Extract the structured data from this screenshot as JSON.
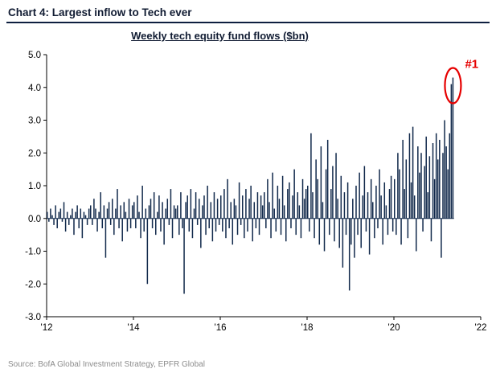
{
  "header": {
    "title": "Chart 4: Largest inflow to Tech ever"
  },
  "source": "Source: BofA Global Investment Strategy, EPFR Global",
  "colors": {
    "bar": "#11294b",
    "axis": "#000000",
    "title": "#111c33",
    "rule": "#0e1f40",
    "accent_red": "#e60000",
    "source_gray": "#8c8c8c"
  },
  "chart_data": {
    "type": "bar",
    "title": "Weekly tech equity fund flows ($bn)",
    "xlabel": "",
    "ylabel": "",
    "ylim": [
      -3.0,
      5.0
    ],
    "xlim": [
      2012,
      2022
    ],
    "y_ticks": [
      5.0,
      4.0,
      3.0,
      2.0,
      1.0,
      0.0,
      -1.0,
      -2.0,
      -3.0
    ],
    "x_ticks": [
      "'12",
      "'14",
      "'16",
      "'18",
      "'20",
      "'22"
    ],
    "x_tick_years": [
      2012,
      2014,
      2016,
      2018,
      2020,
      2022
    ],
    "x_start": 2012,
    "points_per_year": 26,
    "grid": false,
    "legend": "none",
    "annotation": {
      "label": "#1",
      "color": "#e60000",
      "value": 4.3
    },
    "values": [
      0.2,
      -0.1,
      0.3,
      0.1,
      -0.2,
      0.4,
      -0.3,
      0.2,
      0.3,
      -0.1,
      0.5,
      -0.4,
      0.2,
      -0.2,
      0.1,
      0.3,
      -0.5,
      0.2,
      0.4,
      -0.3,
      0.3,
      -0.6,
      0.2,
      0.1,
      -0.2,
      0.3,
      0.4,
      -0.2,
      0.6,
      0.3,
      -0.4,
      0.2,
      0.8,
      -0.3,
      0.4,
      -1.2,
      0.3,
      0.5,
      -0.2,
      0.6,
      -0.5,
      0.3,
      0.9,
      -0.3,
      0.4,
      -0.7,
      0.5,
      0.2,
      -0.4,
      0.6,
      -0.3,
      0.4,
      0.5,
      -0.3,
      0.7,
      0.2,
      -0.6,
      1.0,
      -0.4,
      0.3,
      -2.0,
      0.4,
      0.6,
      -0.3,
      0.8,
      -0.5,
      0.2,
      0.7,
      -0.4,
      0.5,
      -0.8,
      0.3,
      0.6,
      -0.2,
      0.9,
      -0.6,
      0.4,
      0.3,
      0.4,
      -0.5,
      0.8,
      -0.3,
      -2.3,
      0.5,
      0.7,
      -0.4,
      0.9,
      -0.6,
      0.3,
      0.8,
      -0.2,
      0.6,
      -0.9,
      0.4,
      0.7,
      -0.5,
      1.0,
      -0.3,
      0.5,
      -0.7,
      0.8,
      -0.4,
      0.6,
      -0.2,
      0.7,
      -0.4,
      0.9,
      -0.6,
      1.2,
      -0.3,
      0.5,
      -0.8,
      0.6,
      0.4,
      -0.5,
      1.1,
      -0.2,
      0.7,
      -0.6,
      0.9,
      -0.4,
      0.6,
      1.0,
      -0.7,
      0.5,
      -0.3,
      0.8,
      -0.5,
      0.7,
      0.4,
      0.8,
      -0.3,
      1.2,
      0.5,
      -0.6,
      1.4,
      0.3,
      -0.4,
      1.0,
      0.6,
      -0.5,
      1.3,
      0.4,
      -0.7,
      0.9,
      1.1,
      -0.3,
      0.7,
      1.5,
      -0.5,
      0.8,
      0.4,
      -0.6,
      1.2,
      0.6,
      0.9,
      1.0,
      -0.4,
      2.6,
      0.8,
      -0.6,
      1.8,
      1.2,
      -0.8,
      2.2,
      0.5,
      -1.0,
      1.5,
      2.4,
      -0.5,
      0.9,
      1.6,
      -0.7,
      2.0,
      0.6,
      -0.9,
      1.3,
      -1.5,
      0.8,
      -0.5,
      1.1,
      -2.2,
      -0.8,
      0.6,
      -1.2,
      1.0,
      -0.5,
      1.4,
      -0.9,
      0.7,
      1.6,
      -0.4,
      0.8,
      -1.1,
      1.2,
      0.5,
      -0.6,
      1.0,
      -0.3,
      1.5,
      0.7,
      -0.8,
      1.1,
      0.4,
      -0.5,
      0.9,
      1.3,
      -0.4,
      1.2,
      -0.5,
      2.0,
      1.5,
      -0.8,
      2.4,
      0.9,
      1.8,
      -0.6,
      2.6,
      1.1,
      2.8,
      0.7,
      -1.0,
      2.2,
      1.4,
      2.0,
      -0.4,
      1.6,
      2.5,
      0.8,
      1.9,
      -0.7,
      2.3,
      1.2,
      2.6,
      1.8,
      2.4,
      -1.2,
      2.0,
      3.0,
      2.2,
      1.5,
      2.6,
      4.1,
      4.3
    ]
  }
}
